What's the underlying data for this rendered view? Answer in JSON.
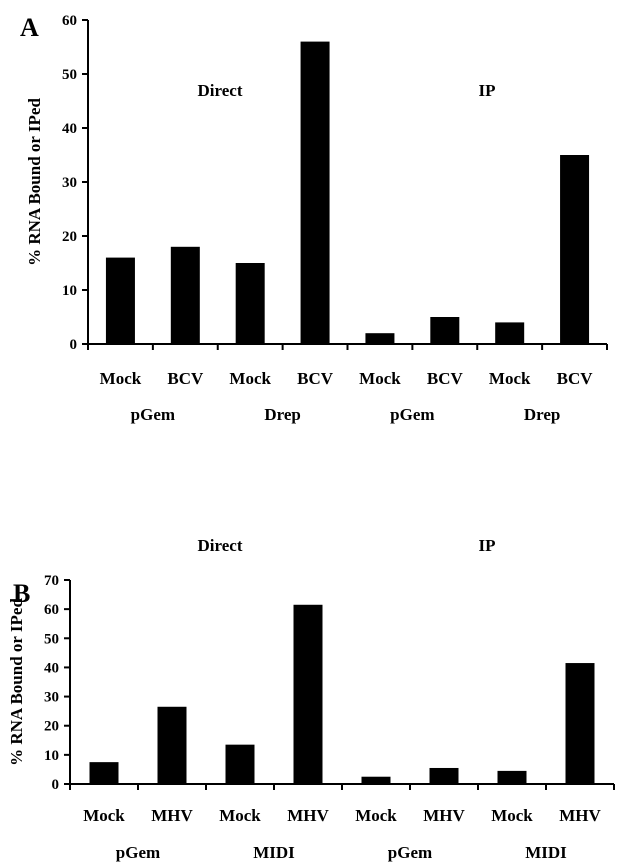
{
  "chart_data": [
    {
      "type": "bar",
      "panel": "A",
      "ylabel": "% RNA Bound or IPed",
      "ylim": [
        0,
        60
      ],
      "yticks": [
        0,
        10,
        20,
        30,
        40,
        50,
        60
      ],
      "categories": [
        "Mock",
        "BCV",
        "Mock",
        "BCV",
        "Mock",
        "BCV",
        "Mock",
        "BCV"
      ],
      "values": [
        16,
        18,
        15,
        56,
        2,
        5,
        4,
        35
      ],
      "groups": [
        "pGem",
        "Drep",
        "pGem",
        "Drep"
      ],
      "annotations": [
        "Direct",
        "IP"
      ],
      "bar_color": "#000000"
    },
    {
      "type": "bar",
      "panel": "B",
      "ylabel": "% RNA Bound or IPed",
      "ylim": [
        0,
        70
      ],
      "yticks": [
        0,
        10,
        20,
        30,
        40,
        50,
        60,
        70
      ],
      "categories": [
        "Mock",
        "MHV",
        "Mock",
        "MHV",
        "Mock",
        "MHV",
        "Mock",
        "MHV"
      ],
      "values": [
        7.5,
        26.5,
        13.5,
        61.5,
        2.5,
        5.5,
        4.5,
        41.5
      ],
      "groups": [
        "pGem",
        "MIDI",
        "pGem",
        "MIDI"
      ],
      "annotations": [
        "Direct",
        "IP"
      ],
      "bar_color": "#000000"
    }
  ]
}
